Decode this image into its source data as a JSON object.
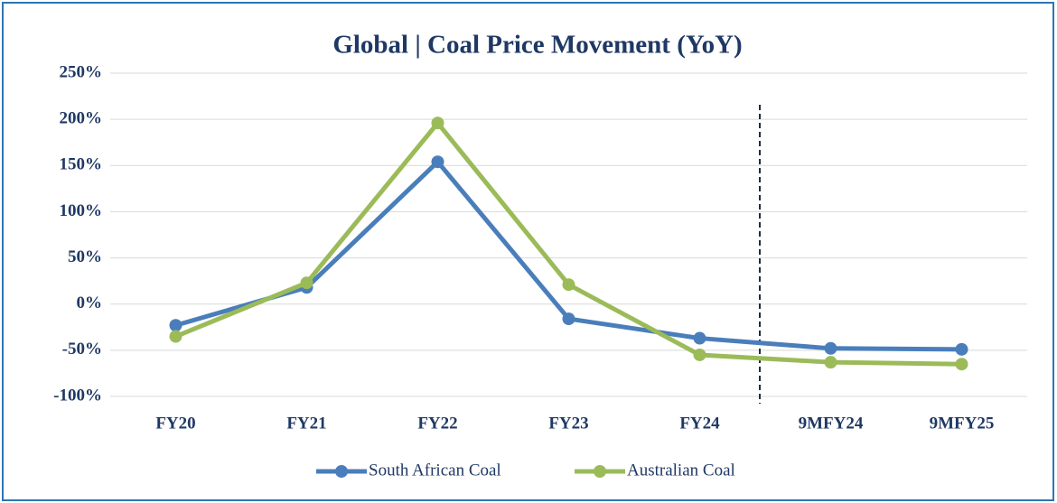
{
  "chart_data": {
    "type": "line",
    "title": "Global  | Coal Price Movement (YoY)",
    "categories": [
      "FY20",
      "FY21",
      "FY22",
      "FY23",
      "FY24",
      "9MFY24",
      "9MFY25"
    ],
    "series": [
      {
        "name": "South African Coal",
        "color": "#4a7ebb",
        "values": [
          -23,
          18,
          154,
          -16,
          -37,
          -48,
          -49
        ]
      },
      {
        "name": "Australian Coal",
        "color": "#9bbb59",
        "values": [
          -35,
          23,
          196,
          21,
          -55,
          -63,
          -65
        ]
      }
    ],
    "ylim": [
      -100,
      250
    ],
    "yticks": [
      {
        "value": -100,
        "label": "-100%"
      },
      {
        "value": -50,
        "label": "-50%"
      },
      {
        "value": 0,
        "label": "0%"
      },
      {
        "value": 50,
        "label": "50%"
      },
      {
        "value": 100,
        "label": "100%"
      },
      {
        "value": 150,
        "label": "150%"
      },
      {
        "value": 200,
        "label": "200%"
      },
      {
        "value": 250,
        "label": "250%"
      }
    ],
    "grid": true,
    "legend": "bottom"
  }
}
